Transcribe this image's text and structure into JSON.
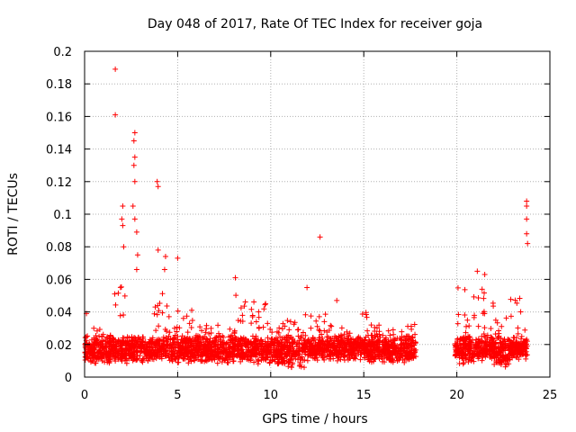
{
  "chart_data": {
    "type": "scatter",
    "title": "Day 048 of 2017, Rate Of TEC Index for receiver goja",
    "xlabel": "GPS time / hours",
    "ylabel": "ROTI / TECUs",
    "xlim": [
      0,
      25
    ],
    "ylim": [
      0,
      0.2
    ],
    "xticks": [
      0,
      5,
      10,
      15,
      20,
      25
    ],
    "yticks": [
      0,
      0.02,
      0.04,
      0.06,
      0.08,
      0.1,
      0.12,
      0.14,
      0.16,
      0.18,
      0.2
    ],
    "xtick_labels": [
      "0",
      "5",
      "10",
      "15",
      "20",
      "25"
    ],
    "ytick_labels": [
      "0",
      "0.02",
      "0.04",
      "0.06",
      "0.08",
      "0.1",
      "0.12",
      "0.14",
      "0.16",
      "0.18",
      "0.2"
    ],
    "grid": true,
    "marker": "+",
    "color": "#ff0000",
    "data_gaps_hours": [
      [
        17.8,
        19.9
      ]
    ],
    "notable_points": [
      {
        "x": 1.65,
        "y": 0.189
      },
      {
        "x": 1.65,
        "y": 0.161
      },
      {
        "x": 2.7,
        "y": 0.15
      },
      {
        "x": 2.65,
        "y": 0.145
      },
      {
        "x": 2.7,
        "y": 0.135
      },
      {
        "x": 2.65,
        "y": 0.13
      },
      {
        "x": 2.7,
        "y": 0.12
      },
      {
        "x": 2.6,
        "y": 0.105
      },
      {
        "x": 2.7,
        "y": 0.097
      },
      {
        "x": 2.05,
        "y": 0.105
      },
      {
        "x": 2.0,
        "y": 0.097
      },
      {
        "x": 2.05,
        "y": 0.093
      },
      {
        "x": 2.1,
        "y": 0.08
      },
      {
        "x": 2.8,
        "y": 0.089
      },
      {
        "x": 2.85,
        "y": 0.075
      },
      {
        "x": 2.8,
        "y": 0.066
      },
      {
        "x": 3.9,
        "y": 0.12
      },
      {
        "x": 3.95,
        "y": 0.117
      },
      {
        "x": 3.95,
        "y": 0.078
      },
      {
        "x": 4.35,
        "y": 0.074
      },
      {
        "x": 4.3,
        "y": 0.066
      },
      {
        "x": 5.0,
        "y": 0.073
      },
      {
        "x": 8.1,
        "y": 0.061
      },
      {
        "x": 12.65,
        "y": 0.086
      },
      {
        "x": 11.95,
        "y": 0.055
      },
      {
        "x": 13.55,
        "y": 0.047
      },
      {
        "x": 23.75,
        "y": 0.108
      },
      {
        "x": 23.75,
        "y": 0.105
      },
      {
        "x": 23.75,
        "y": 0.097
      },
      {
        "x": 23.75,
        "y": 0.088
      },
      {
        "x": 23.8,
        "y": 0.082
      },
      {
        "x": 0.1,
        "y": 0.039
      },
      {
        "x": 21.1,
        "y": 0.065
      },
      {
        "x": 21.5,
        "y": 0.063
      }
    ],
    "bands": [
      {
        "x_start": 0.0,
        "x_end": 1.5,
        "y_min": 0.008,
        "y_max": 0.03
      },
      {
        "x_start": 1.5,
        "x_end": 2.4,
        "y_min": 0.008,
        "y_max": 0.058
      },
      {
        "x_start": 2.4,
        "x_end": 3.6,
        "y_min": 0.009,
        "y_max": 0.025
      },
      {
        "x_start": 3.6,
        "x_end": 4.5,
        "y_min": 0.01,
        "y_max": 0.055
      },
      {
        "x_start": 4.5,
        "x_end": 6.0,
        "y_min": 0.008,
        "y_max": 0.042
      },
      {
        "x_start": 6.0,
        "x_end": 8.0,
        "y_min": 0.008,
        "y_max": 0.032
      },
      {
        "x_start": 8.0,
        "x_end": 10.0,
        "y_min": 0.008,
        "y_max": 0.052
      },
      {
        "x_start": 10.0,
        "x_end": 11.8,
        "y_min": 0.006,
        "y_max": 0.035
      },
      {
        "x_start": 11.8,
        "x_end": 13.2,
        "y_min": 0.01,
        "y_max": 0.04
      },
      {
        "x_start": 13.2,
        "x_end": 14.3,
        "y_min": 0.01,
        "y_max": 0.032
      },
      {
        "x_start": 14.3,
        "x_end": 15.2,
        "y_min": 0.01,
        "y_max": 0.04
      },
      {
        "x_start": 15.2,
        "x_end": 17.8,
        "y_min": 0.008,
        "y_max": 0.033
      },
      {
        "x_start": 19.9,
        "x_end": 21.0,
        "y_min": 0.008,
        "y_max": 0.055
      },
      {
        "x_start": 21.0,
        "x_end": 22.0,
        "y_min": 0.01,
        "y_max": 0.06
      },
      {
        "x_start": 22.0,
        "x_end": 22.8,
        "y_min": 0.006,
        "y_max": 0.038
      },
      {
        "x_start": 22.8,
        "x_end": 23.8,
        "y_min": 0.01,
        "y_max": 0.05
      }
    ]
  }
}
